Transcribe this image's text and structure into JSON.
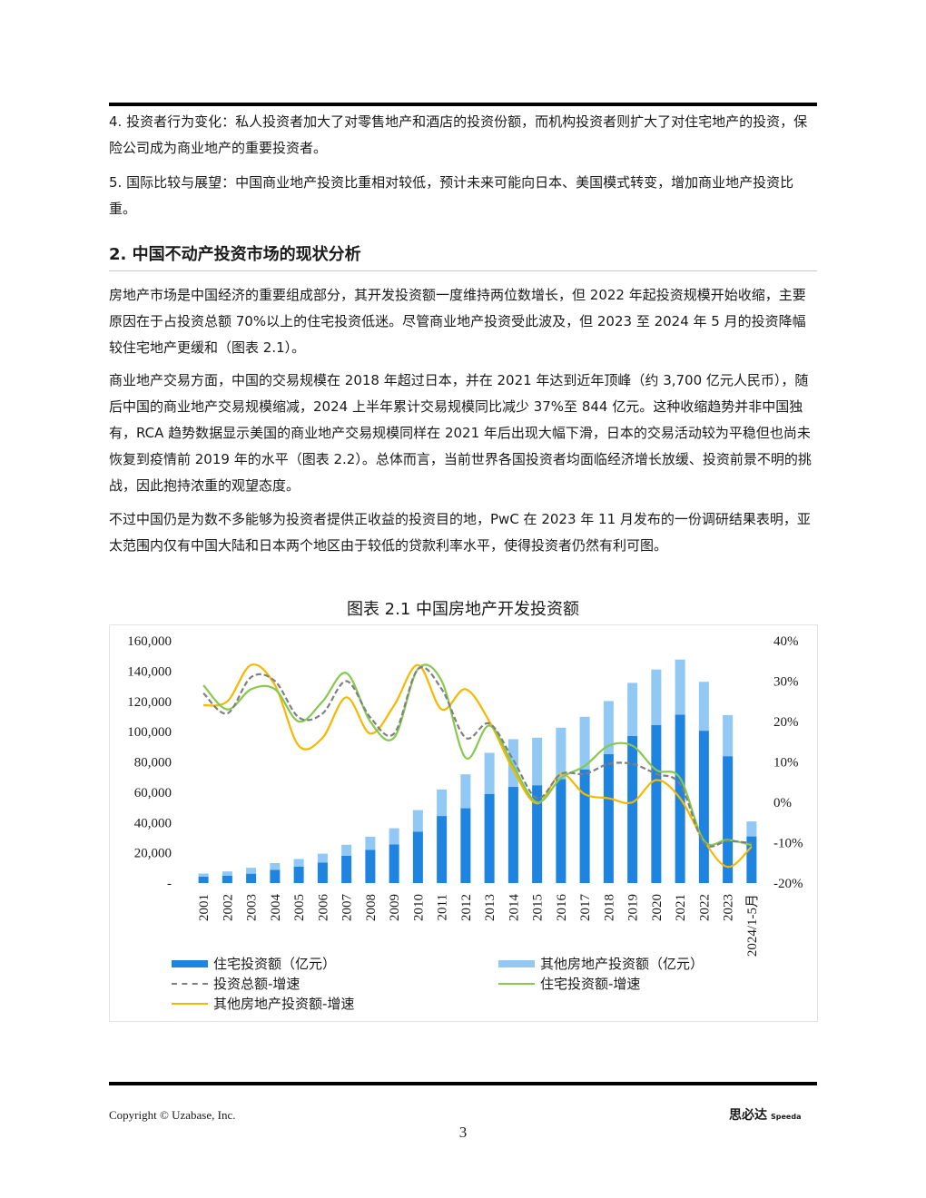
{
  "paragraphs_top": [
    "4. 投资者行为变化：私人投资者加大了对零售地产和酒店的投资份额，而机构投资者则扩大了对住宅地产的投资，保险公司成为商业地产的重要投资者。",
    "5. 国际比较与展望：中国商业地产投资比重相对较低，预计未来可能向日本、美国模式转变，增加商业地产投资比重。"
  ],
  "section_title": "2. 中国不动产投资市场的现状分析",
  "body_paragraphs": [
    "房地产市场是中国经济的重要组成部分，其开发投资额一度维持两位数增长，但 2022 年起投资规模开始收缩，主要原因在于占投资总额 70%以上的住宅投资低迷。尽管商业地产投资受此波及，但 2023 至 2024 年 5 月的投资降幅较住宅地产更缓和（图表 2.1）。",
    "商业地产交易方面，中国的交易规模在 2018 年超过日本，并在 2021 年达到近年顶峰（约 3,700 亿元人民币），随后中国的商业地产交易规模缩减，2024 上半年累计交易规模同比减少 37%至 844 亿元。这种收缩趋势并非中国独有，RCA 趋势数据显示美国的商业地产交易规模同样在 2021 年后出现大幅下滑，日本的交易活动较为平稳但也尚未恢复到疫情前 2019 年的水平（图表 2.2）。总体而言，当前世界各国投资者均面临经济增长放缓、投资前景不明的挑战，因此抱持浓重的观望态度。",
    "不过中国仍是为数不多能够为投资者提供正收益的投资目的地，PwC 在 2023 年 11 月发布的一份调研结果表明，亚太范围内仅有中国大陆和日本两个地区由于较低的贷款利率水平，使得投资者仍然有利可图。"
  ],
  "figure_title": "图表 2.1 中国房地产开发投资额",
  "chart_data": {
    "type": "bar",
    "stacked": true,
    "categories": [
      "2001",
      "2002",
      "2003",
      "2004",
      "2005",
      "2006",
      "2007",
      "2008",
      "2009",
      "2010",
      "2011",
      "2012",
      "2013",
      "2014",
      "2015",
      "2016",
      "2017",
      "2018",
      "2019",
      "2020",
      "2021",
      "2022",
      "2023",
      "2024/1-5月"
    ],
    "left_axis": {
      "ticks": [
        "-",
        "20,000",
        "40,000",
        "60,000",
        "80,000",
        "100,000",
        "120,000",
        "140,000",
        "160,000"
      ],
      "ylim": [
        0,
        160000
      ]
    },
    "right_axis": {
      "ticks": [
        "-20%",
        "-10%",
        "0%",
        "10%",
        "20%",
        "30%",
        "40%"
      ],
      "ylim": [
        -20,
        40
      ]
    },
    "series": [
      {
        "name": "住宅投资额（亿元）",
        "kind": "bar",
        "color": "#1f83e0",
        "values": [
          4200,
          4800,
          6200,
          8800,
          10800,
          13600,
          18000,
          22000,
          25600,
          34000,
          44300,
          49400,
          58900,
          63500,
          64600,
          68700,
          75100,
          85200,
          97100,
          104400,
          111200,
          100600,
          83800,
          30800
        ]
      },
      {
        "name": "其他房地产投资额（亿元）",
        "kind": "bar",
        "color": "#91c9f4",
        "values": [
          2100,
          2900,
          3900,
          4400,
          5100,
          5800,
          7300,
          8600,
          10600,
          14200,
          17500,
          22400,
          27100,
          31500,
          31400,
          33900,
          34700,
          35000,
          35100,
          36600,
          36400,
          32300,
          27100,
          9900
        ]
      },
      {
        "name": "投资总额-增速",
        "kind": "line",
        "color": "#808080",
        "dash": true,
        "values": [
          27,
          22,
          31,
          30,
          21,
          22,
          30,
          21,
          17,
          33,
          28,
          16,
          19.5,
          10.5,
          1,
          7,
          7,
          9.5,
          9.5,
          7,
          4.5,
          -10,
          -9.6,
          -10.1
        ]
      },
      {
        "name": "住宅投资额-增速",
        "kind": "line",
        "color": "#86c94e",
        "values": [
          29,
          23,
          28,
          28,
          20,
          25,
          32,
          20,
          16,
          33,
          30,
          11,
          19,
          9,
          0,
          6,
          9,
          14,
          14,
          8,
          6,
          -9.5,
          -9.3,
          -10.6
        ]
      },
      {
        "name": "其他房地产投资额-增速",
        "kind": "line",
        "color": "#f5b800",
        "values": [
          24,
          25,
          34,
          29,
          14,
          16,
          26,
          17,
          24,
          34,
          23,
          28,
          20,
          8,
          -0.3,
          7,
          2,
          1,
          0,
          5.5,
          1,
          -9.5,
          -16,
          -11
        ]
      }
    ]
  },
  "footer": {
    "copyright": "Copyright © Uzabase, Inc.",
    "brand_cn": "思必达",
    "brand_en": "Speeda",
    "page_number": "3"
  }
}
